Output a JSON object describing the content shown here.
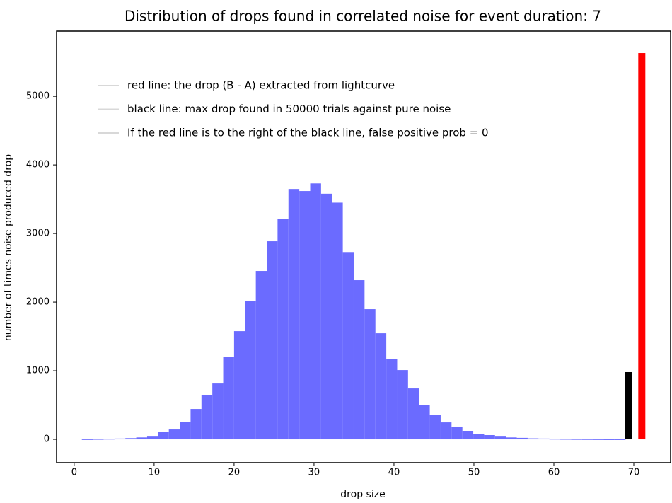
{
  "chart_data": {
    "type": "histogram",
    "title": "Distribution of drops found in correlated noise for event duration: 7",
    "x_label": "drop size",
    "y_label": "number of times noise produced drop",
    "bins": [
      0.96,
      2.32,
      3.68,
      5.04,
      6.4,
      7.76,
      9.12,
      10.48,
      11.84,
      13.2,
      14.56,
      15.92,
      17.28,
      18.64,
      20,
      21.36,
      22.72,
      24.08,
      25.44,
      26.8,
      28.16,
      29.52,
      30.88,
      32.24,
      33.6,
      34.96,
      36.32,
      37.68,
      39.04,
      40.4,
      41.76,
      43.12,
      44.48,
      45.84,
      47.2,
      48.56,
      49.92,
      51.28,
      52.64,
      54,
      55.36,
      56.72,
      58.08,
      59.44,
      60.8,
      62.16,
      63.52,
      64.88,
      66.24,
      67.6,
      68.96
    ],
    "values": [
      2,
      5,
      8,
      12,
      18,
      28,
      40,
      113,
      144,
      258,
      443,
      650,
      814,
      1206,
      1577,
      2020,
      2454,
      2887,
      3216,
      3649,
      3619,
      3730,
      3580,
      3450,
      2730,
      2320,
      1897,
      1546,
      1175,
      1010,
      742,
      505,
      361,
      247,
      186,
      124,
      82,
      62,
      40,
      28,
      22,
      15,
      12,
      8,
      6,
      4,
      3,
      2,
      1,
      1
    ],
    "color": "#6b6bff",
    "vlines": [
      {
        "x": 69.3,
        "value": 980,
        "color": "#000000"
      },
      {
        "x": 71.0,
        "value": 5630,
        "color": "#ff0000"
      }
    ],
    "legend": [
      "red line: the drop (B - A) extracted from lightcurve",
      "black line: max drop found in 50000 trials against pure noise",
      "If the red line is to the right of the black line, false positive prob = 0"
    ],
    "legend_color": "#d8d8d8",
    "xlim": [
      -2.2,
      74.6
    ],
    "ylim": [
      -340,
      5950
    ],
    "xticks": [
      0,
      10,
      20,
      30,
      40,
      50,
      60,
      70
    ],
    "yticks": [
      0,
      1000,
      2000,
      3000,
      4000,
      5000
    ]
  }
}
